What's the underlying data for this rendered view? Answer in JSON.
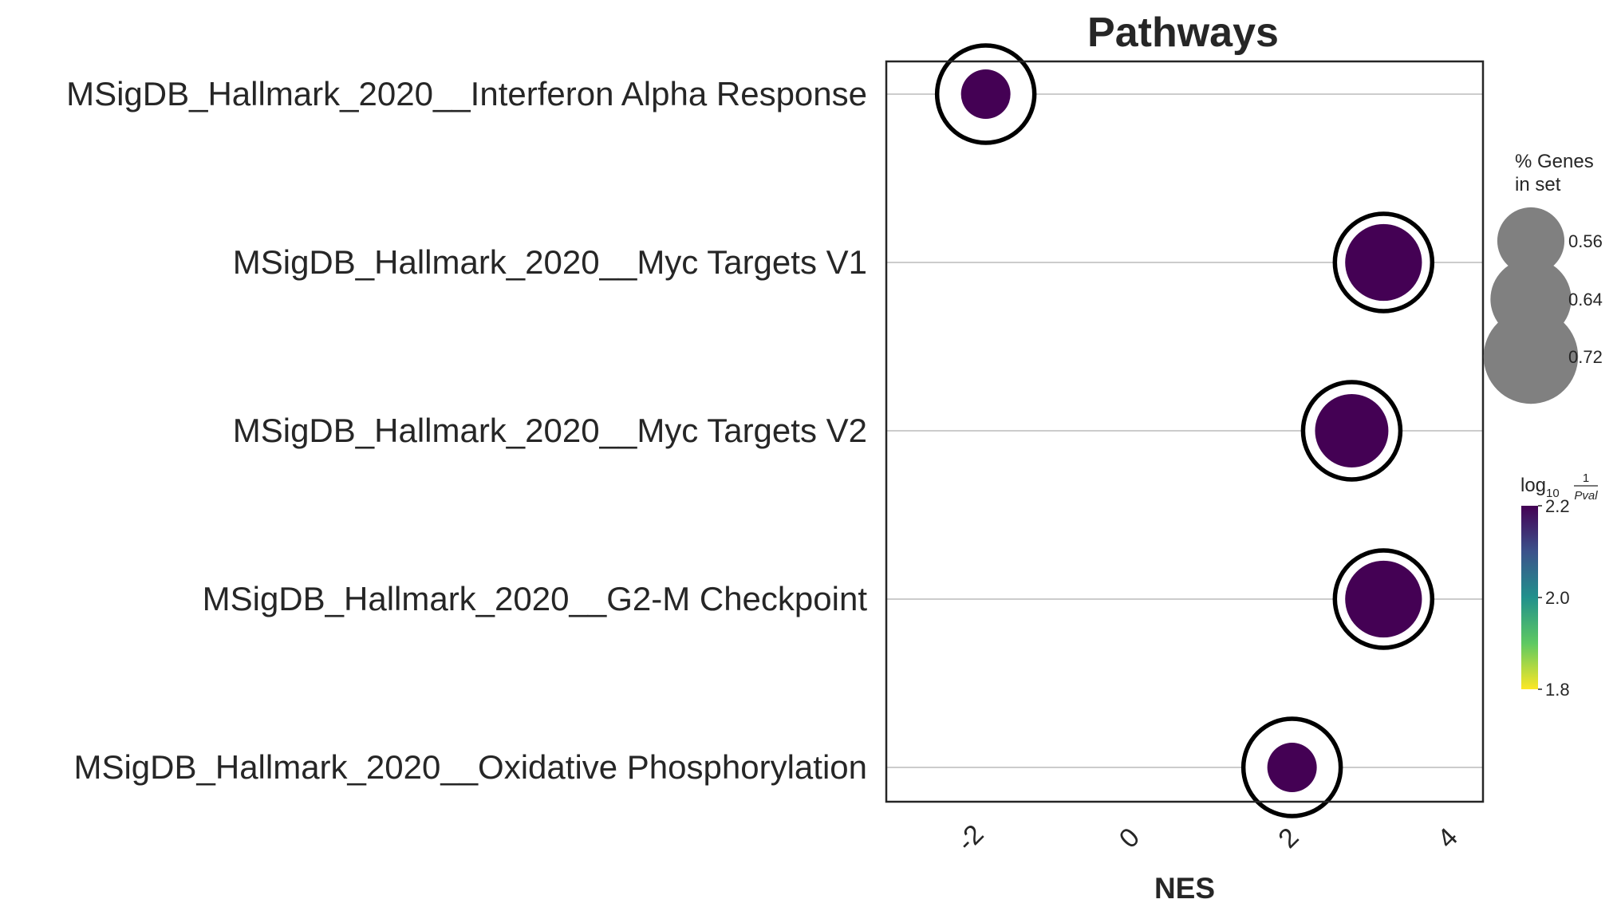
{
  "chart_data": {
    "type": "scatter",
    "title": "Pathways",
    "xlabel": "NES",
    "ylabel": "",
    "xlim": [
      -3.05,
      4.45
    ],
    "xticks": [
      "-2",
      "0",
      "2",
      "4"
    ],
    "xtick_values": [
      -2,
      0,
      2,
      4
    ],
    "grid": "horizontal",
    "categories": [
      "MSigDB_Hallmark_2020__Interferon Alpha Response",
      "MSigDB_Hallmark_2020__Myc Targets V1",
      "MSigDB_Hallmark_2020__Myc Targets V2",
      "MSigDB_Hallmark_2020__G2-M Checkpoint",
      "MSigDB_Hallmark_2020__Oxidative Phosphorylation"
    ],
    "points": [
      {
        "category": "MSigDB_Hallmark_2020__Interferon Alpha Response",
        "nes": -1.8,
        "pct_genes": 0.55,
        "log10_inv_pval": 2.2
      },
      {
        "category": "MSigDB_Hallmark_2020__Myc Targets V1",
        "nes": 3.2,
        "pct_genes": 0.71,
        "log10_inv_pval": 2.2
      },
      {
        "category": "MSigDB_Hallmark_2020__Myc Targets V2",
        "nes": 2.8,
        "pct_genes": 0.69,
        "log10_inv_pval": 2.2
      },
      {
        "category": "MSigDB_Hallmark_2020__G2-M Checkpoint",
        "nes": 3.2,
        "pct_genes": 0.71,
        "log10_inv_pval": 2.2
      },
      {
        "category": "MSigDB_Hallmark_2020__Oxidative Phosphorylation",
        "nes": 2.05,
        "pct_genes": 0.55,
        "log10_inv_pval": 2.2
      }
    ],
    "size_legend": {
      "title_line1": "% Genes",
      "title_line2": "in set",
      "entries": [
        "0.56",
        "0.64",
        "0.72"
      ],
      "entry_values": [
        0.56,
        0.64,
        0.72
      ]
    },
    "color_legend": {
      "title_main": "log",
      "title_sub": "10",
      "title_frac_num": "1",
      "title_frac_den": "Pval",
      "ticks": [
        "2.2",
        "2.0",
        "1.8"
      ],
      "tick_values": [
        2.2,
        2.0,
        1.8
      ],
      "range": [
        1.8,
        2.2
      ],
      "colormap": "viridis",
      "color_low": "#fde725",
      "color_high": "#440154"
    },
    "marker_color": "#440154",
    "outline_color": "#000000"
  }
}
